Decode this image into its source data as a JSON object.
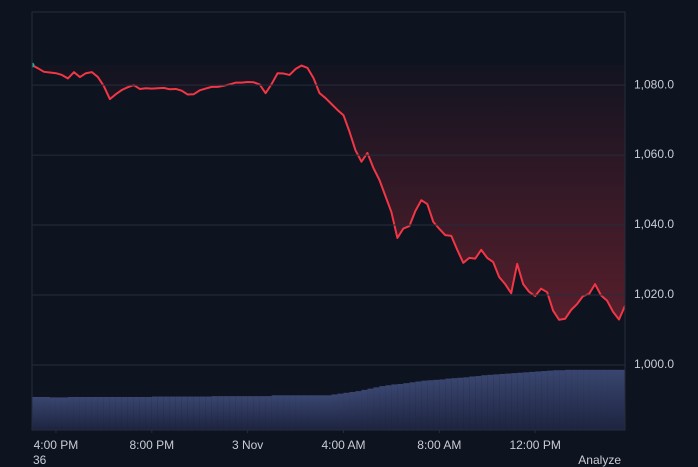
{
  "chart_data": {
    "type": "line",
    "x": [
      15,
      15.25,
      15.5,
      15.75,
      16,
      16.25,
      16.5,
      16.75,
      17,
      17.25,
      17.5,
      17.75,
      18,
      18.25,
      18.5,
      18.75,
      19,
      19.25,
      19.5,
      19.75,
      20,
      20.25,
      20.5,
      20.75,
      21,
      21.25,
      21.5,
      21.75,
      22,
      22.25,
      22.5,
      22.75,
      23,
      23.25,
      23.5,
      23.75,
      24,
      24.25,
      24.5,
      24.75,
      25,
      25.25,
      25.5,
      25.75,
      26,
      26.25,
      26.5,
      26.75,
      27,
      27.25,
      27.5,
      27.75,
      28,
      28.25,
      28.5,
      28.75,
      29,
      29.25,
      29.5,
      29.75,
      30,
      30.25,
      30.5,
      30.75,
      31,
      31.25,
      31.5,
      31.75,
      32,
      32.25,
      32.5,
      32.75,
      33,
      33.25,
      33.5,
      33.75,
      34,
      34.25,
      34.5,
      34.75,
      35,
      35.25,
      35.5,
      35.75,
      36,
      36.25,
      36.5,
      36.75,
      37,
      37.25,
      37.5,
      37.75,
      38,
      38.25,
      38.5,
      38.75,
      39,
      39.25,
      39.5,
      39.75
    ],
    "series": [
      {
        "color": "#f23645",
        "marker_color": "#26a69a",
        "values": [
          1085.7,
          1084.8,
          1083.8,
          1083.6,
          1083.4,
          1082.9,
          1081.9,
          1083.7,
          1082.3,
          1083.4,
          1083.7,
          1082.3,
          1079.7,
          1076.0,
          1077.4,
          1078.6,
          1079.4,
          1080,
          1078.9,
          1079.1,
          1079.0,
          1079.1,
          1079.2,
          1078.8,
          1078.9,
          1078.4,
          1077.3,
          1077.4,
          1078.5,
          1079.0,
          1079.5,
          1079.5,
          1079.8,
          1080.2,
          1080.7,
          1080.7,
          1080.9,
          1080.8,
          1080.2,
          1077.7,
          1080.3,
          1083.4,
          1083.3,
          1082.9,
          1084.6,
          1085.6,
          1084.9,
          1082.0,
          1077.7,
          1076.3,
          1074.6,
          1072.9,
          1071.4,
          1066.7,
          1061.4,
          1058.1,
          1060.6,
          1056.3,
          1052.9,
          1048.3,
          1043.7,
          1036.3,
          1039.0,
          1039.7,
          1044.0,
          1047.1,
          1046.0,
          1040.9,
          1038.9,
          1037.1,
          1036.9,
          1032.9,
          1029.2,
          1030.6,
          1030.4,
          1032.9,
          1030.6,
          1029.4,
          1025.1,
          1023.1,
          1020.5,
          1028.9,
          1023.1,
          1020.9,
          1019.7,
          1021.8,
          1020.8,
          1015.5,
          1012.9,
          1013.2,
          1015.7,
          1017.4,
          1019.7,
          1020.3,
          1023.1,
          1019.9,
          1018.4,
          1015.2,
          1013.0,
          1016.9
        ]
      },
      {
        "type": "bar",
        "axis": "y2",
        "color": "#2b3457",
        "values": [
          7.9,
          7.9,
          7.9,
          7.8,
          7.8,
          7.8,
          7.9,
          7.9,
          7.9,
          7.9,
          7.9,
          7.9,
          7.9,
          7.9,
          7.9,
          7.9,
          7.9,
          7.9,
          7.9,
          7.9,
          8.0,
          8.0,
          8.0,
          8.0,
          8.0,
          8.0,
          8.0,
          8.0,
          8.0,
          8.0,
          8.1,
          8.1,
          8.1,
          8.1,
          8.1,
          8.1,
          8.1,
          8.1,
          8.1,
          8.1,
          8.3,
          8.3,
          8.3,
          8.3,
          8.3,
          8.3,
          8.3,
          8.3,
          8.3,
          8.3,
          8.5,
          8.7,
          8.9,
          9.1,
          9.3,
          9.6,
          9.9,
          10.2,
          10.5,
          10.7,
          10.9,
          11.0,
          11.2,
          11.4,
          11.6,
          11.8,
          11.9,
          12.0,
          12.1,
          12.3,
          12.4,
          12.5,
          12.6,
          12.8,
          12.9,
          13.1,
          13.2,
          13.3,
          13.4,
          13.5,
          13.6,
          13.7,
          13.8,
          13.9,
          14.0,
          14.1,
          14.2,
          14.3,
          14.3,
          14.4,
          14.4,
          14.4,
          14.4,
          14.4,
          14.4,
          14.4,
          14.4,
          14.4,
          14.4,
          14.6
        ]
      }
    ],
    "xlim": [
      15,
      39.75
    ],
    "xticks": [
      {
        "value": 16,
        "label": "4:00 PM"
      },
      {
        "value": 20,
        "label": "8:00 PM"
      },
      {
        "value": 24,
        "label": "3 Nov"
      },
      {
        "value": 28,
        "label": "4:00 AM"
      },
      {
        "value": 32,
        "label": "8:00 AM"
      },
      {
        "value": 36,
        "label": "12:00 PM"
      }
    ],
    "ylim": [
      981.4,
      1100.9
    ],
    "yticks": [
      {
        "value": 1000,
        "label": "1,000.0"
      },
      {
        "value": 1020,
        "label": "1,020.0"
      },
      {
        "value": 1040,
        "label": "1,040.0"
      },
      {
        "value": 1060,
        "label": "1,060.0"
      },
      {
        "value": 1080,
        "label": "1,080.0"
      }
    ],
    "y2lim": [
      0,
      100
    ],
    "grid": true,
    "annotations": [
      "36",
      "Analyze"
    ]
  }
}
